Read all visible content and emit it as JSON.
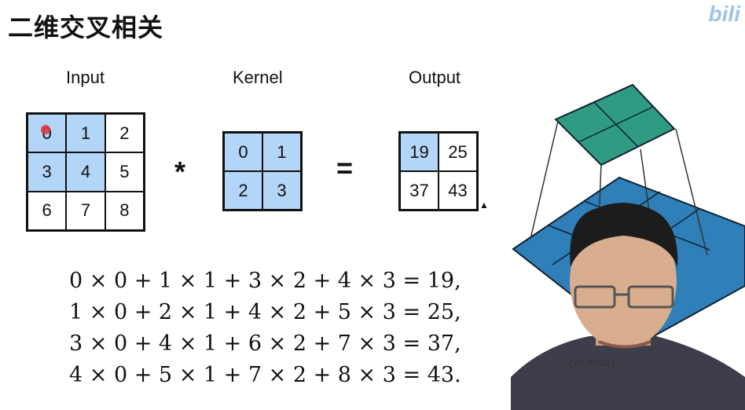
{
  "title": "二维交叉相关",
  "labels": {
    "input": "Input",
    "kernel": "Kernel",
    "output": "Output"
  },
  "operators": {
    "conv": "*",
    "equals": "="
  },
  "input_grid": [
    [
      "0",
      "1",
      "2"
    ],
    [
      "3",
      "4",
      "5"
    ],
    [
      "6",
      "7",
      "8"
    ]
  ],
  "kernel_grid": [
    [
      "0",
      "1"
    ],
    [
      "2",
      "3"
    ]
  ],
  "output_grid": [
    [
      "19",
      "25"
    ],
    [
      "37",
      "43"
    ]
  ],
  "equations": [
    "0 × 0 + 1 × 1 + 3 × 2 + 4 × 3 = 19,",
    "1 × 0 + 2 × 1 + 4 × 2 + 5 × 3 = 25,",
    "3 × 0 + 4 × 1 + 6 × 2 + 7 × 3 = 37,",
    "4 × 0 + 5 × 1 + 7 × 2 + 8 × 3 = 43."
  ],
  "watermark": "(vd                  ithub)",
  "brand": "bili",
  "colors": {
    "highlight": "#b3d5f7",
    "top_grid": "#2e9b82",
    "bottom_grid": "#2f7fb8"
  }
}
